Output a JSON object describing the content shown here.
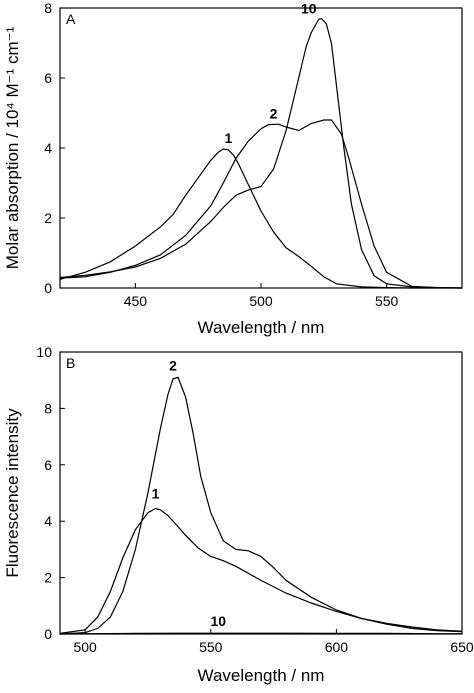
{
  "chart_data": [
    {
      "type": "line",
      "panel_label": "A",
      "xlabel": "Wavelength / nm",
      "ylabel": "Molar absorption / 10⁴ M⁻¹ cm⁻¹",
      "xlim": [
        420,
        580
      ],
      "ylim": [
        0,
        8
      ],
      "xticks": [
        450,
        500,
        550
      ],
      "yticks": [
        0,
        2,
        4,
        6,
        8
      ],
      "grid": false,
      "series": [
        {
          "name": "1",
          "label_at": [
            487,
            4.15
          ],
          "x": [
            420,
            430,
            440,
            450,
            460,
            465,
            470,
            475,
            480,
            483,
            485,
            487,
            489,
            491,
            495,
            500,
            505,
            510,
            515,
            520,
            525,
            530,
            540,
            550,
            560,
            570,
            580
          ],
          "y": [
            0.25,
            0.45,
            0.75,
            1.2,
            1.75,
            2.1,
            2.65,
            3.15,
            3.65,
            3.88,
            3.97,
            3.95,
            3.8,
            3.55,
            2.95,
            2.2,
            1.6,
            1.15,
            0.9,
            0.62,
            0.32,
            0.12,
            0.03,
            0.01,
            0.0,
            0.0,
            0.0
          ]
        },
        {
          "name": "2",
          "label_at": [
            505,
            4.85
          ],
          "x": [
            420,
            430,
            440,
            450,
            460,
            470,
            480,
            485,
            490,
            495,
            500,
            503,
            507,
            510,
            515,
            520,
            525,
            528,
            532,
            535,
            540,
            545,
            550,
            560,
            570,
            580
          ],
          "y": [
            0.28,
            0.32,
            0.45,
            0.65,
            0.95,
            1.5,
            2.35,
            3.0,
            3.7,
            4.2,
            4.55,
            4.67,
            4.68,
            4.6,
            4.5,
            4.7,
            4.8,
            4.8,
            4.4,
            3.7,
            2.4,
            1.2,
            0.45,
            0.05,
            0.01,
            0.0
          ]
        },
        {
          "name": "10",
          "label_at": [
            519,
            7.85
          ],
          "x": [
            420,
            430,
            440,
            450,
            460,
            470,
            480,
            485,
            490,
            495,
            500,
            505,
            510,
            515,
            518,
            520,
            523,
            524,
            526,
            528,
            530,
            533,
            536,
            540,
            545,
            550,
            560,
            570,
            580
          ],
          "y": [
            0.3,
            0.36,
            0.46,
            0.6,
            0.85,
            1.25,
            1.9,
            2.3,
            2.65,
            2.8,
            2.9,
            3.4,
            4.5,
            6.0,
            6.9,
            7.3,
            7.68,
            7.7,
            7.55,
            7.0,
            5.8,
            4.0,
            2.4,
            1.1,
            0.35,
            0.12,
            0.03,
            0.01,
            0.0
          ]
        }
      ]
    },
    {
      "type": "line",
      "panel_label": "B",
      "xlabel": "Wavelength / nm",
      "ylabel": "Fluorescence intensity",
      "xlim": [
        490,
        650
      ],
      "ylim": [
        0,
        10
      ],
      "xticks": [
        500,
        550,
        600,
        650
      ],
      "yticks": [
        0,
        2,
        4,
        6,
        8,
        10
      ],
      "grid": false,
      "series": [
        {
          "name": "1",
          "label_at": [
            528,
            4.8
          ],
          "x": [
            490,
            500,
            505,
            510,
            515,
            520,
            525,
            528,
            530,
            533,
            536,
            540,
            545,
            550,
            555,
            560,
            570,
            580,
            590,
            600,
            610,
            620,
            630,
            640,
            650
          ],
          "y": [
            0.02,
            0.15,
            0.6,
            1.5,
            2.7,
            3.7,
            4.3,
            4.45,
            4.4,
            4.2,
            3.9,
            3.5,
            3.05,
            2.75,
            2.6,
            2.4,
            1.9,
            1.45,
            1.1,
            0.8,
            0.55,
            0.38,
            0.25,
            0.15,
            0.1
          ]
        },
        {
          "name": "2",
          "label_at": [
            535,
            9.35
          ],
          "x": [
            490,
            500,
            505,
            510,
            515,
            520,
            525,
            530,
            533,
            535,
            537,
            540,
            543,
            546,
            550,
            555,
            560,
            565,
            570,
            575,
            580,
            590,
            600,
            610,
            620,
            630,
            640,
            650
          ],
          "y": [
            0.0,
            0.05,
            0.2,
            0.6,
            1.5,
            3.0,
            5.0,
            7.3,
            8.5,
            9.05,
            9.1,
            8.4,
            7.1,
            5.6,
            4.3,
            3.3,
            3.0,
            2.95,
            2.75,
            2.35,
            1.9,
            1.3,
            0.85,
            0.55,
            0.35,
            0.2,
            0.12,
            0.08
          ]
        },
        {
          "name": "10",
          "label_at": [
            553,
            0.28
          ],
          "x": [
            490,
            500,
            520,
            540,
            560,
            580,
            600,
            620,
            640,
            650
          ],
          "y": [
            0.0,
            0.01,
            0.02,
            0.03,
            0.03,
            0.03,
            0.02,
            0.02,
            0.01,
            0.01
          ]
        }
      ]
    }
  ]
}
